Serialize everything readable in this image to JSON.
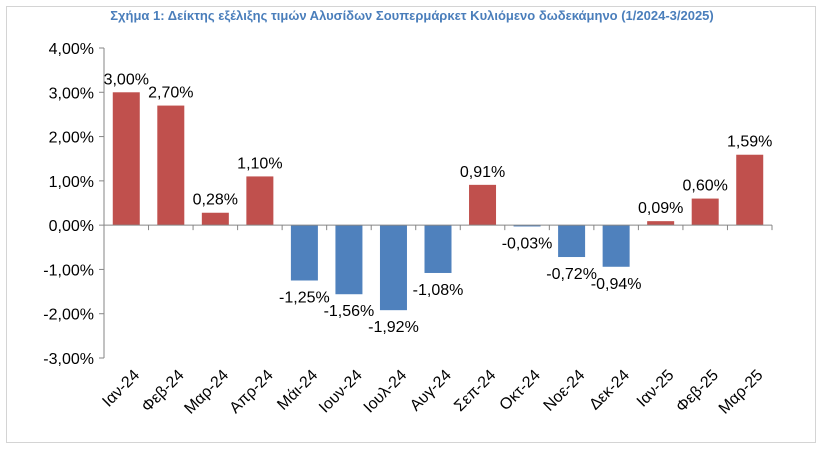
{
  "chart_data": {
    "type": "bar",
    "title": "Σχήμα 1: Δείκτης εξέλιξης τιμών Αλυσίδων Σουπερμάρκετ Κυλιόμενο δωδεκάμηνο (1/2024-3/2025)",
    "categories": [
      "Ιαν-24",
      "Φεβ-24",
      "Μαρ-24",
      "Απρ-24",
      "Μάι-24",
      "Ιουν-24",
      "Ιουλ-24",
      "Αυγ-24",
      "Σεπ-24",
      "Οκτ-24",
      "Νοε-24",
      "Δεκ-24",
      "Ιαν-25",
      "Φεβ-25",
      "Μαρ-25"
    ],
    "values": [
      3.0,
      2.7,
      0.28,
      1.1,
      -1.25,
      -1.56,
      -1.92,
      -1.08,
      0.91,
      -0.03,
      -0.72,
      -0.94,
      0.09,
      0.6,
      1.59
    ],
    "data_labels": [
      "3,00%",
      "2,70%",
      "0,28%",
      "1,10%",
      "-1,25%",
      "-1,56%",
      "-1,92%",
      "-1,08%",
      "0,91%",
      "-0,03%",
      "-0,72%",
      "-0,94%",
      "0,09%",
      "0,60%",
      "1,59%"
    ],
    "y_ticks": [
      4,
      3,
      2,
      1,
      0,
      -1,
      -2,
      -3
    ],
    "y_tick_labels": [
      "4,00%",
      "3,00%",
      "2,00%",
      "1,00%",
      "0,00%",
      "-1,00%",
      "-2,00%",
      "-3,00%"
    ],
    "ylim": [
      -3,
      4
    ],
    "grid": false,
    "colors": {
      "positive": "#c0504d",
      "negative": "#4f81bd",
      "axis": "#868686",
      "title": "#4a7ebb"
    }
  }
}
